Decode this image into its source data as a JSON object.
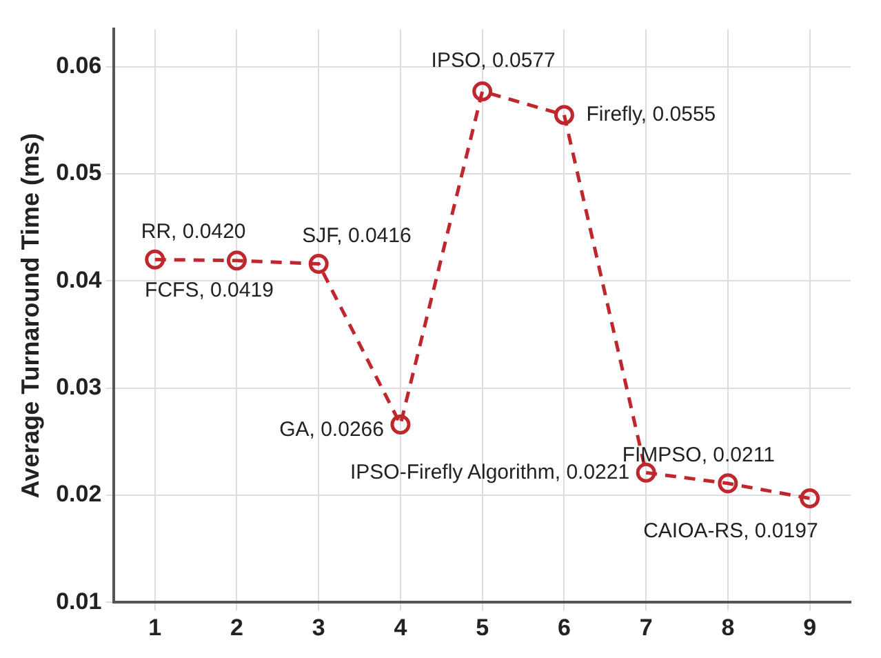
{
  "chart_data": {
    "type": "line",
    "ylabel": "Average Turnaround Time (ms)",
    "x": [
      1,
      2,
      3,
      4,
      5,
      6,
      7,
      8,
      9
    ],
    "series": [
      {
        "color": "#c0272d",
        "values": [
          0.042,
          0.0419,
          0.0416,
          0.0266,
          0.0577,
          0.0555,
          0.0221,
          0.0211,
          0.0197
        ]
      }
    ],
    "xlim": [
      0.5,
      9.5
    ],
    "xticks": [
      1,
      2,
      3,
      4,
      5,
      6,
      7,
      8,
      9
    ],
    "ylim": [
      0.01,
      0.0635
    ],
    "yticks": [
      0.01,
      0.02,
      0.03,
      0.04,
      0.05,
      0.06
    ],
    "grid": true,
    "legend": false,
    "marker": "circle",
    "line_style": "dashed",
    "annotations": [
      {
        "text": "RR, 0.0420",
        "x": 1,
        "y": 0.042
      },
      {
        "text": "FCFS, 0.0419",
        "x": 2,
        "y": 0.0419
      },
      {
        "text": "SJF, 0.0416",
        "x": 3,
        "y": 0.0416
      },
      {
        "text": "GA, 0.0266",
        "x": 4,
        "y": 0.0266
      },
      {
        "text": "IPSO, 0.0577",
        "x": 5,
        "y": 0.0577
      },
      {
        "text": "Firefly, 0.0555",
        "x": 6,
        "y": 0.0555
      },
      {
        "text": "IPSO-Firefly Algorithm, 0.0221",
        "x": 7,
        "y": 0.0221
      },
      {
        "text": "FIMPSO, 0.0211",
        "x": 8,
        "y": 0.0211
      },
      {
        "text": "CAIOA-RS, 0.0197",
        "x": 9,
        "y": 0.0197
      }
    ]
  }
}
